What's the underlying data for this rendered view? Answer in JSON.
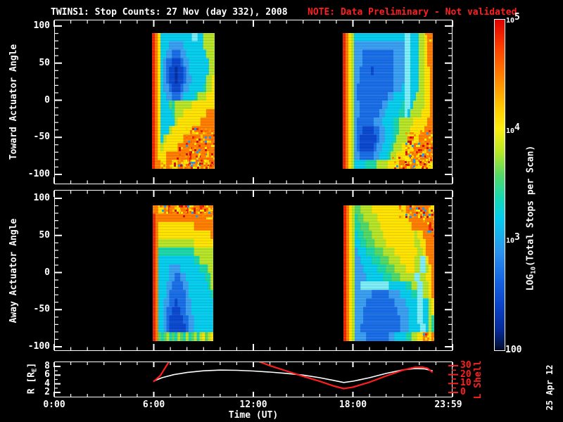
{
  "title": {
    "main": "TWINS1: Stop Counts: 27 Nov (day 332), 2008",
    "note": "NOTE: Data Preliminary - Not validated"
  },
  "date_stamp": "25 Apr 12",
  "colors": {
    "background": "#000000",
    "foreground": "#ffffff",
    "alert_red": "#ff1e1e",
    "line_r": "#ffffff",
    "line_l": "#ff1e1e"
  },
  "palette": {
    "r": "#ee2800",
    "o": "#ff7d00",
    "y": "#ffe300",
    "g": "#b7e427",
    "G": "#52d966",
    "t": "#1bd7a8",
    "c": "#06cdec",
    "C": "#7deef5",
    "b": "#3a9ff0",
    "B": "#1a6ee6",
    "D": "#0b49cf",
    "d": "#0731a5"
  },
  "noise_palette": [
    "#ff7d00",
    "#e82200",
    "#ffdd00",
    "#cc1100",
    "#ff9900",
    "#ffee00",
    "#ff6600",
    "#ffcc00",
    "#2299ee",
    "#ff8800"
  ],
  "chart_data": {
    "type": "heatmap",
    "title": "TWINS1: Stop Counts: 27 Nov (day 332), 2008",
    "x_axis": {
      "label": "Time (UT)",
      "range_hours": [
        0,
        24
      ],
      "major_ticks_hours": [
        0,
        6,
        12,
        18,
        24
      ],
      "major_tick_labels": [
        "0:00",
        "6:00",
        "12:00",
        "18:00",
        "23:59"
      ],
      "minor_tick_step_hours": 1
    },
    "spectro_panels": [
      {
        "name": "toward",
        "y_label": "Toward Actuator Angle",
        "y_major_ticks": [
          100,
          50,
          0,
          -50,
          -100
        ],
        "y_minor_step": 10,
        "blocks": [
          {
            "t_start": 5.9,
            "t_end": 9.67,
            "angle_top": 90.5,
            "angle_bottom": -92.4,
            "cols": 22,
            "rows": 16,
            "rle_rows": [
              "r1 o1 y1 c11 C2 c2 g4",
              "r1 o1 y1 c3 b5 c7 g4",
              "r1 o1 y1 c2 b2 B3 b2 c7 g3",
              "r1 o1 y1 c1 b1 B2 D3 B1 b2 c7 g2",
              "r1 o1 y1 c1 b1 B1 D2 d1 D2 B1 b1 c7 g2",
              "r1 o1 y1 c1 b1 B1 D2 d1 D2 B1 b2 c5 g2 y1",
              "r1 o1 y1 c1 b2 B1 D3 B1 b2 c5 t1 g2 y1",
              "r1 o1 y1 c2 b2 B3 b1 c4 t1 g3 y3",
              "r1 o1 y1 c3 G1 t1 g6 y8",
              "r1 o1 y1 c4 t1 g3 y8 o3",
              "r1 o1 y1 c5 g1 y8 o5",
              "r1 o1 y1 c3 g1 y7 o8",
              "r1 o1 y1 c1 g1 y6 o11",
              "r1 o1 y1 g1 y5 o13",
              "r1 o1 y3 o17",
              "r1 o2 y2 o2 y2 o2 y2 o2 y2 o2 y1 o2"
            ],
            "noise": [
              {
                "x0": 0.55,
                "y0": 0.7,
                "x1": 1.0,
                "y1": 0.97,
                "d": 0.45
              },
              {
                "x0": 0.4,
                "y0": 0.84,
                "x1": 0.85,
                "y1": 0.97,
                "d": 0.3
              },
              {
                "x0": 0.12,
                "y0": 0.955,
                "x1": 1.0,
                "y1": 1.0,
                "d": 0.35
              }
            ]
          },
          {
            "t_start": 17.39,
            "t_end": 22.82,
            "angle_top": 90.5,
            "angle_bottom": -92.4,
            "cols": 32,
            "rows": 16,
            "rle_rows": [
              "r1 o1 y1 g1 c18 C2 c3 g2 y1 o2",
              "r1 o1 y1 g1 b18 C2 c3 g2 y1 o2",
              "r1 o1 y1 g1 b3 B11 b4 C2 c3 g2 y1 o2",
              "r1 o1 y1 g1 b3 B11 b4 C2 c3 g2 y1 o2",
              "r1 o1 y1 g1 b2 B4 D1 B7 b4 C2 c3 g2 y2 o1",
              "r1 o1 y1 g1 b2 B12 b4 C2 c3 g2 y2 o1",
              "r1 o1 y1 g1 b1 B13 b3 c1 C2 c3 g2 y2 o1",
              "r1 o1 y1 g1 b1 B11 b2 c4 C2 c2 g3 y2 o1",
              "r1 o1 y1 g1 b2 B8 b2 c5 t1 C2 c1 g4 y2 o1",
              "r1 o1 y1 g1 b2 B7 b2 c5 t2 C1 c1 g4 y3 o1",
              "r1 o1 y1 g1 b1 B6 b3 c4 t2 g5 y5 o2",
              "r1 o1 y1 g1 b1 B2 D4 B2 b2 c3 t2 g4 y5 o3",
              "r1 o1 y1 g1 b1 B1 D6 B1 b2 c3 t1 g4 y4 o5",
              "r1 o1 y1 g1 b1 B1 D5 B1 b2 c3 t1 g3 y4 o7",
              "r1 o1 y1 g1 b2 B5 b2 c3 t1 g2 y4 o9",
              "r1 o1 y1 g1 c4 t4 g4 y4 o2 y2 o2 y2 o2 y2"
            ],
            "noise": [
              {
                "x0": 0.7,
                "y0": 0.72,
                "x1": 1.0,
                "y1": 0.98,
                "d": 0.45
              },
              {
                "x0": 0.55,
                "y0": 0.9,
                "x1": 1.0,
                "y1": 1.0,
                "d": 0.3
              },
              {
                "x0": 0.92,
                "y0": 0.0,
                "x1": 1.0,
                "y1": 0.05,
                "d": 0.35
              }
            ]
          }
        ]
      },
      {
        "name": "away",
        "y_label": "Away Actuator Angle",
        "y_major_ticks": [
          100,
          50,
          0,
          -50,
          -100
        ],
        "y_minor_step": 10,
        "blocks": [
          {
            "t_start": 5.94,
            "t_end": 9.58,
            "angle_top": 90.5,
            "angle_bottom": -92.4,
            "cols": 22,
            "rows": 16,
            "rle_rows": [
              "o2 y2 o1 r1 o2 y2 o2 r1 y2 o2 r1 o4",
              "r1 o21",
              "r1 o1 y13 o7",
              "r1 o1 y19 o1",
              "r1 o1 g13 y7",
              "r1 o1 t13 g7",
              "r1 o1 c13 t2 g5",
              "r1 o1 c4 b4 c7 t3 g2",
              "r1 o1 c4 b2 B2 b2 c7 t2 g1",
              "r1 o1 c3 b2 B4 b2 c7 t1 g1",
              "r1 o1 c3 b1 B6 b1 c8 t1",
              "r1 o1 c2 b2 B2 D1 B3 b2 c8",
              "r1 o1 c2 b1 B2 D3 B2 b2 c8",
              "r1 o1 c2 b1 B1 D5 B2 b2 c7",
              "r1 o1 c2 b1 B1 D6 B1 b2 c7",
              "r1 o1 G1 t1 G1 g1 t1 G1 t1 g1 G1 t1 g1 t1 G1 g1 t1 g1 y1 G1 g1 y1"
            ],
            "noise": [
              {
                "x0": 0.12,
                "y0": 0.0,
                "x1": 1.0,
                "y1": 0.055,
                "d": 0.55
              },
              {
                "x0": 0.5,
                "y0": 0.03,
                "x1": 1.0,
                "y1": 0.1,
                "d": 0.25
              }
            ]
          },
          {
            "t_start": 17.43,
            "t_end": 22.9,
            "angle_top": 90.5,
            "angle_bottom": -92.4,
            "cols": 32,
            "rows": 16,
            "rle_rows": [
              "r1 o1 y1 g1 G2 g4 y12 o8 y2",
              "r1 o1 y1 g1 t1 G2 g5 y11 o9",
              "r1 o1 y1 g1 t2 G3 g4 y11 o6 r1 o1",
              "r1 o1 y1 g1 c1 t2 G3 g4 y11 g1 y2 o4",
              "r1 o1 y1 g1 c2 t2 G3 g4 y10 g2 y2 o3",
              "r1 o1 y1 g1 b1 c3 t3 G3 g4 y8 g2 y1 o3",
              "r1 o1 y1 g1 b2 c4 t3 G3 g4 y5 g2 C2 y1 o2",
              "r1 o1 y1 g1 b3 c5 t3 G3 g4 y3 g2 C2 g1 y1 o1",
              "r1 o1 y1 g1 b4 c6 t3 G3 g5 C2 g2 y2 o1",
              "r1 o1 y1 g1 b2 C10 c6 t2 g2 C2 g2 y1 o1",
              "r1 o1 y1 g1 b6 B6 b4 c4 t2 C2 g2 y1 o1",
              "r1 o1 y1 g1 b4 B10 b4 c4 C2 c2 g1 y1",
              "r1 o1 y1 g1 b3 B12 b4 c3 C2 c2 g1 y1",
              "r1 o1 y1 g1 b3 B13 b3 c3 C2 c2 g1 t1",
              "r1 o1 y1 g1 b2 B14 b3 c4 C2 c1 g1 t1",
              "r1 o1 y1 g1 b4 B8 b2 c4 t2 g2 y2 o2 y1 o1"
            ],
            "noise": [
              {
                "x0": 0.62,
                "y0": 0.0,
                "x1": 1.0,
                "y1": 0.09,
                "d": 0.4
              },
              {
                "x0": 0.88,
                "y0": 0.05,
                "x1": 1.0,
                "y1": 0.22,
                "d": 0.3
              },
              {
                "x0": 0.86,
                "y0": 0.93,
                "x1": 1.0,
                "y1": 1.0,
                "d": 0.35
              }
            ]
          }
        ]
      }
    ],
    "ephemeris_panel": {
      "left_axis": {
        "label_pre": "R [R",
        "label_sub": "E",
        "label_post": "]",
        "major_ticks": [
          8,
          6,
          4,
          2
        ],
        "minor_ticks": [
          3,
          5,
          7
        ],
        "color": "#ffffff"
      },
      "right_axis": {
        "label": "L Shell",
        "major_ticks": [
          30,
          20,
          10,
          0
        ],
        "minor_ticks": [
          5,
          15,
          25
        ],
        "color": "#ff1e1e"
      },
      "r_series_hours_re": [
        [
          5.98,
          4.6
        ],
        [
          6.5,
          5.4
        ],
        [
          7.2,
          6.1
        ],
        [
          8.0,
          6.6
        ],
        [
          9.0,
          7.0
        ],
        [
          10.0,
          7.15
        ],
        [
          11.0,
          7.1
        ],
        [
          12.0,
          6.95
        ],
        [
          13.0,
          6.7
        ],
        [
          14.0,
          6.4
        ],
        [
          15.0,
          6.0
        ],
        [
          16.0,
          5.4
        ],
        [
          16.8,
          4.8
        ],
        [
          17.45,
          4.3
        ],
        [
          18.0,
          4.6
        ],
        [
          19.0,
          5.4
        ],
        [
          20.0,
          6.4
        ],
        [
          21.0,
          7.2
        ],
        [
          21.7,
          7.5
        ],
        [
          22.3,
          7.45
        ],
        [
          22.8,
          7.0
        ]
      ],
      "l_series_segments_hours_l": [
        [
          [
            5.98,
            12
          ],
          [
            6.4,
            19
          ],
          [
            6.95,
            35.5
          ]
        ],
        [
          [
            12.2,
            35.5
          ],
          [
            13.0,
            30
          ],
          [
            14.0,
            24
          ],
          [
            15.0,
            18
          ],
          [
            16.0,
            12.5
          ],
          [
            16.8,
            7.5
          ],
          [
            17.45,
            4.3
          ],
          [
            18.0,
            6.0
          ],
          [
            19.0,
            11.5
          ],
          [
            20.0,
            18.5
          ],
          [
            21.0,
            25
          ],
          [
            21.7,
            28
          ],
          [
            22.2,
            28.3
          ],
          [
            22.5,
            27
          ],
          [
            22.8,
            22.5
          ]
        ]
      ]
    },
    "colorbar": {
      "label_pre": "LOG",
      "label_sub": "10",
      "label_post": "(Total Stops per Scan)",
      "log_range": [
        2,
        5
      ],
      "exp_ticks": [
        {
          "base": "10",
          "exp": "5",
          "log": 5
        },
        {
          "base": "10",
          "exp": "4",
          "log": 4
        },
        {
          "base": "10",
          "exp": "3",
          "log": 3
        }
      ],
      "bottom_label": "100",
      "gradient": [
        {
          "p": 0.0,
          "c": "#e00000"
        },
        {
          "p": 0.09,
          "c": "#ff4400"
        },
        {
          "p": 0.18,
          "c": "#ff8800"
        },
        {
          "p": 0.27,
          "c": "#ffcc00"
        },
        {
          "p": 0.33,
          "c": "#fcee11"
        },
        {
          "p": 0.4,
          "c": "#b8e827"
        },
        {
          "p": 0.47,
          "c": "#55d966"
        },
        {
          "p": 0.54,
          "c": "#17d8b4"
        },
        {
          "p": 0.6,
          "c": "#06cdec"
        },
        {
          "p": 0.7,
          "c": "#2b94ee"
        },
        {
          "p": 0.79,
          "c": "#1663e2"
        },
        {
          "p": 0.87,
          "c": "#0a41c4"
        },
        {
          "p": 0.94,
          "c": "#062a96"
        },
        {
          "p": 0.985,
          "c": "#031648"
        },
        {
          "p": 1.0,
          "c": "#00081c"
        }
      ]
    }
  }
}
